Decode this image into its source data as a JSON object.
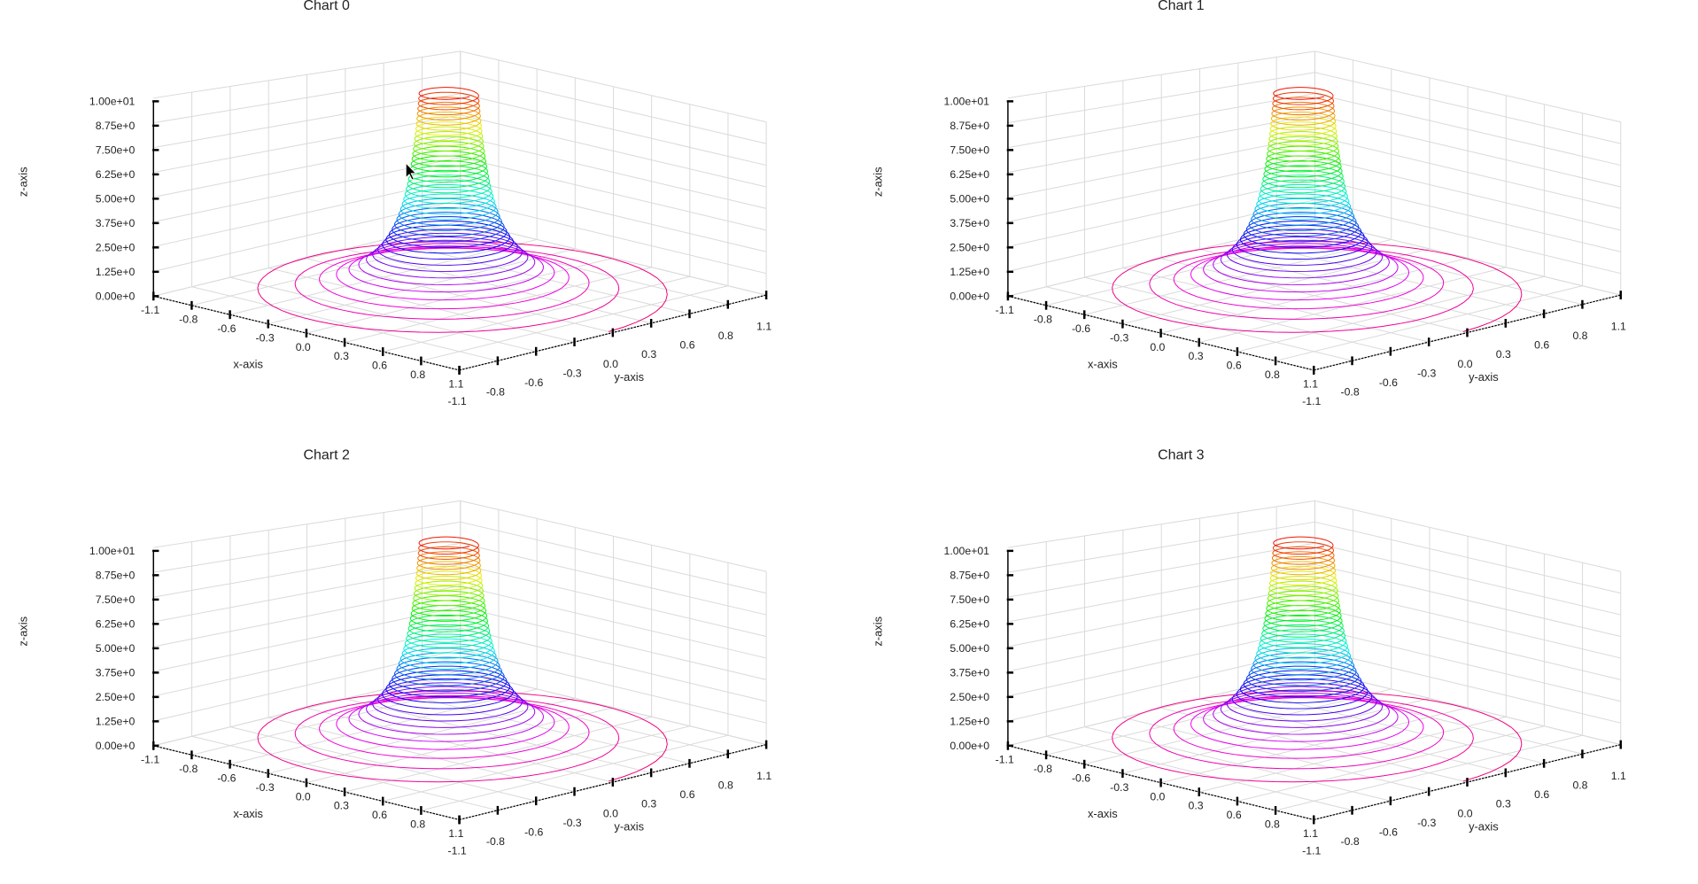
{
  "charts": [
    {
      "title": "Chart 0"
    },
    {
      "title": "Chart 1"
    },
    {
      "title": "Chart 2"
    },
    {
      "title": "Chart 3"
    }
  ],
  "chart_data": [
    {
      "type": "line3d",
      "title": "Chart 0",
      "xlabel": "x-axis",
      "ylabel": "y-axis",
      "zlabel": "z-axis",
      "xlim": [
        -1.1,
        1.1
      ],
      "ylim": [
        -1.1,
        1.1
      ],
      "zlim": [
        0,
        10
      ],
      "x_ticks": [
        "-1.1",
        "-0.8",
        "-0.6",
        "-0.3",
        "0.0",
        "0.3",
        "0.6",
        "0.8",
        "1.1"
      ],
      "y_ticks": [
        "-1.1",
        "-0.8",
        "-0.6",
        "-0.3",
        "0.0",
        "0.3",
        "0.6",
        "0.8",
        "1.1"
      ],
      "z_ticks": [
        "0.00e+0",
        "1.25e+0",
        "2.50e+0",
        "3.75e+0",
        "5.00e+0",
        "6.25e+0",
        "7.50e+0",
        "8.75e+0",
        "1.00e+01"
      ],
      "series": {
        "shape": "conical helix",
        "turns": 40,
        "z_range": [
          0,
          10
        ],
        "radius_bottom": 1.15,
        "radius_top": 0.15,
        "colormap": "rainbow (pink bottom to red top)"
      },
      "grid": true
    },
    {
      "type": "line3d",
      "title": "Chart 1",
      "xlabel": "x-axis",
      "ylabel": "y-axis",
      "zlabel": "z-axis",
      "xlim": [
        -1.1,
        1.1
      ],
      "ylim": [
        -1.1,
        1.1
      ],
      "zlim": [
        0,
        10
      ],
      "x_ticks": [
        "-1.1",
        "-0.8",
        "-0.6",
        "-0.3",
        "0.0",
        "0.3",
        "0.6",
        "0.8",
        "1.1"
      ],
      "y_ticks": [
        "-1.1",
        "-0.8",
        "-0.6",
        "-0.3",
        "0.0",
        "0.3",
        "0.6",
        "0.8",
        "1.1"
      ],
      "z_ticks": [
        "0.00e+0",
        "1.25e+0",
        "2.50e+0",
        "3.75e+0",
        "5.00e+0",
        "6.25e+0",
        "7.50e+0",
        "8.75e+0",
        "1.00e+01"
      ],
      "series": {
        "shape": "conical helix",
        "turns": 40,
        "z_range": [
          0,
          10
        ],
        "radius_bottom": 1.15,
        "radius_top": 0.15,
        "colormap": "rainbow (pink bottom to red top)"
      },
      "grid": true
    },
    {
      "type": "line3d",
      "title": "Chart 2",
      "xlabel": "x-axis",
      "ylabel": "y-axis",
      "zlabel": "z-axis",
      "xlim": [
        -1.1,
        1.1
      ],
      "ylim": [
        -1.1,
        1.1
      ],
      "zlim": [
        0,
        10
      ],
      "x_ticks": [
        "-1.1",
        "-0.8",
        "-0.6",
        "-0.3",
        "0.0",
        "0.3",
        "0.6",
        "0.8",
        "1.1"
      ],
      "y_ticks": [
        "-1.1",
        "-0.8",
        "-0.6",
        "-0.3",
        "0.0",
        "0.3",
        "0.6",
        "0.8",
        "1.1"
      ],
      "z_ticks": [
        "0.00e+0",
        "1.25e+0",
        "2.50e+0",
        "3.75e+0",
        "5.00e+0",
        "6.25e+0",
        "7.50e+0",
        "8.75e+0",
        "1.00e+01"
      ],
      "series": {
        "shape": "conical helix",
        "turns": 40,
        "z_range": [
          0,
          10
        ],
        "radius_bottom": 1.15,
        "radius_top": 0.15,
        "colormap": "rainbow (pink bottom to red top)"
      },
      "grid": true
    },
    {
      "type": "line3d",
      "title": "Chart 3",
      "xlabel": "x-axis",
      "ylabel": "y-axis",
      "zlabel": "z-axis",
      "xlim": [
        -1.1,
        1.1
      ],
      "ylim": [
        -1.1,
        1.1
      ],
      "zlim": [
        0,
        10
      ],
      "x_ticks": [
        "-1.1",
        "-0.8",
        "-0.6",
        "-0.3",
        "0.0",
        "0.3",
        "0.6",
        "0.8",
        "1.1"
      ],
      "y_ticks": [
        "-1.1",
        "-0.8",
        "-0.6",
        "-0.3",
        "0.0",
        "0.3",
        "0.6",
        "0.8",
        "1.1"
      ],
      "z_ticks": [
        "0.00e+0",
        "1.25e+0",
        "2.50e+0",
        "3.75e+0",
        "5.00e+0",
        "6.25e+0",
        "7.50e+0",
        "8.75e+0",
        "1.00e+01"
      ],
      "series": {
        "shape": "conical helix",
        "turns": 40,
        "z_range": [
          0,
          10
        ],
        "radius_bottom": 1.15,
        "radius_top": 0.15,
        "colormap": "rainbow (pink bottom to red top)"
      },
      "grid": true
    }
  ]
}
